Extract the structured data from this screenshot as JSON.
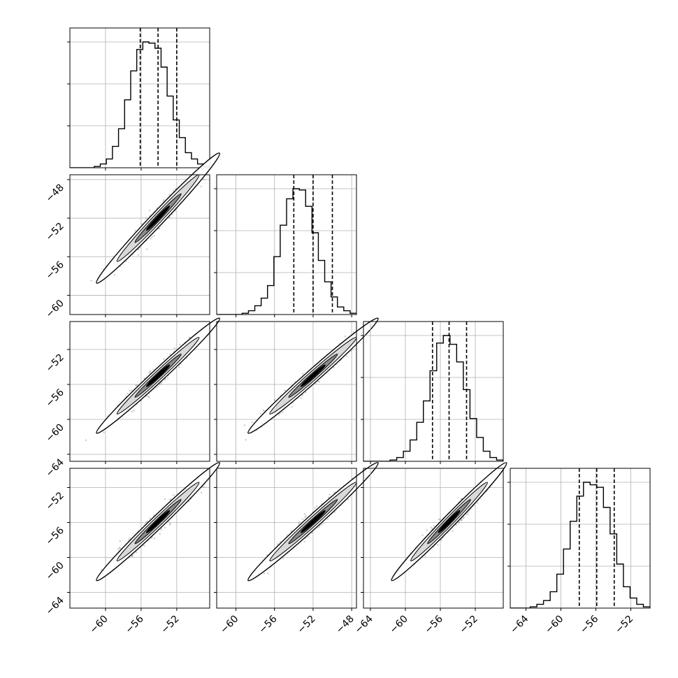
{
  "chart_data": {
    "type": "corner",
    "grid": true,
    "colors": {
      "line": "#000000",
      "grid": "#b0b0b0",
      "scatter": "#555555"
    },
    "parameters": [
      {
        "median": -54.1,
        "q16": -56.1,
        "q84": -52.0,
        "range": [
          -64.0,
          -48.3
        ],
        "xticks": [
          "-60",
          "-56",
          "-52"
        ],
        "yticks": []
      },
      {
        "median": -52.0,
        "q16": -54.0,
        "q84": -50.0,
        "range": [
          -62.0,
          -47.5
        ],
        "xticks": [
          "-60",
          "-56",
          "-52",
          "-48"
        ],
        "yticks": [
          "-48",
          "-52",
          "-56",
          "-60"
        ]
      },
      {
        "median": -55.0,
        "q16": -56.9,
        "q84": -53.0,
        "range": [
          -64.8,
          -48.8
        ],
        "xticks": [
          "-64",
          "-60",
          "-56",
          "-52"
        ],
        "yticks": [
          "-52",
          "-56",
          "-60",
          "-64"
        ]
      },
      {
        "median": -55.9,
        "q16": -57.9,
        "q84": -53.9,
        "range": [
          -65.8,
          -49.8
        ],
        "xticks": [
          "-64",
          "-60",
          "-56",
          "-52"
        ],
        "yticks": [
          "-52",
          "-56",
          "-60",
          "-64"
        ]
      }
    ],
    "histograms": [
      [
        0.0,
        0.0,
        0.0,
        0.0,
        0.01,
        0.03,
        0.07,
        0.17,
        0.31,
        0.54,
        0.77,
        0.94,
        1.0,
        0.99,
        0.95,
        0.8,
        0.57,
        0.38,
        0.24,
        0.12,
        0.07,
        0.03,
        0.01
      ],
      [
        0.0,
        0.0,
        0.0,
        0.0,
        0.01,
        0.03,
        0.07,
        0.13,
        0.23,
        0.46,
        0.71,
        0.92,
        1.0,
        0.99,
        0.86,
        0.65,
        0.43,
        0.26,
        0.14,
        0.06,
        0.03,
        0.01
      ],
      [
        0.0,
        0.0,
        0.0,
        0.0,
        0.01,
        0.03,
        0.08,
        0.17,
        0.31,
        0.48,
        0.72,
        0.94,
        1.0,
        0.93,
        0.79,
        0.57,
        0.34,
        0.19,
        0.08,
        0.03,
        0.01
      ],
      [
        0.0,
        0.0,
        0.0,
        0.01,
        0.03,
        0.06,
        0.13,
        0.27,
        0.47,
        0.69,
        0.89,
        1.0,
        0.98,
        0.96,
        0.8,
        0.59,
        0.35,
        0.17,
        0.08,
        0.03,
        0.01
      ]
    ]
  }
}
